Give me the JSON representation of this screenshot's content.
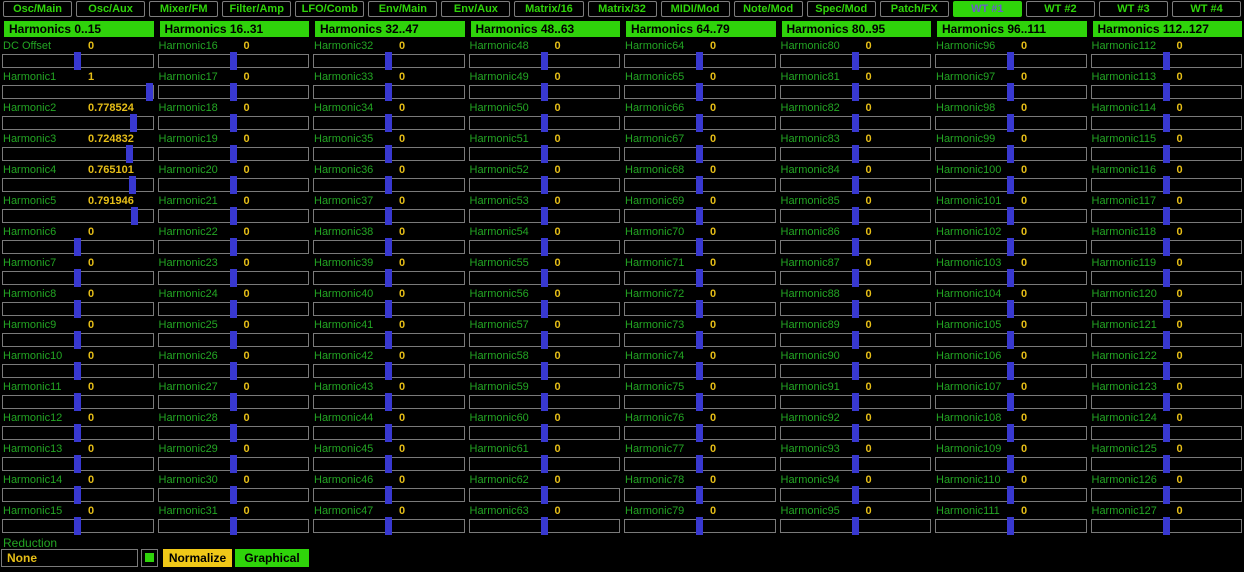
{
  "tabs": [
    {
      "label": "Osc/Main",
      "selected": false
    },
    {
      "label": "Osc/Aux",
      "selected": false
    },
    {
      "label": "Mixer/FM",
      "selected": false
    },
    {
      "label": "Filter/Amp",
      "selected": false
    },
    {
      "label": "LFO/Comb",
      "selected": false
    },
    {
      "label": "Env/Main",
      "selected": false
    },
    {
      "label": "Env/Aux",
      "selected": false
    },
    {
      "label": "Matrix/16",
      "selected": false
    },
    {
      "label": "Matrix/32",
      "selected": false
    },
    {
      "label": "MIDI/Mod",
      "selected": false
    },
    {
      "label": "Note/Mod",
      "selected": false
    },
    {
      "label": "Spec/Mod",
      "selected": false
    },
    {
      "label": "Patch/FX",
      "selected": false
    },
    {
      "label": "WT #1",
      "selected": true
    },
    {
      "label": "WT #2",
      "selected": false
    },
    {
      "label": "WT #3",
      "selected": false
    },
    {
      "label": "WT #4",
      "selected": false
    }
  ],
  "columns": [
    {
      "header": "Harmonics 0..15",
      "rows": [
        [
          "DC Offset",
          "0"
        ],
        [
          "Harmonic1",
          "1"
        ],
        [
          "Harmonic2",
          "0.778524"
        ],
        [
          "Harmonic3",
          "0.724832"
        ],
        [
          "Harmonic4",
          "0.765101"
        ],
        [
          "Harmonic5",
          "0.791946"
        ],
        [
          "Harmonic6",
          "0"
        ],
        [
          "Harmonic7",
          "0"
        ],
        [
          "Harmonic8",
          "0"
        ],
        [
          "Harmonic9",
          "0"
        ],
        [
          "Harmonic10",
          "0"
        ],
        [
          "Harmonic11",
          "0"
        ],
        [
          "Harmonic12",
          "0"
        ],
        [
          "Harmonic13",
          "0"
        ],
        [
          "Harmonic14",
          "0"
        ],
        [
          "Harmonic15",
          "0"
        ]
      ]
    },
    {
      "header": "Harmonics 16..31",
      "rows": [
        [
          "Harmonic16",
          "0"
        ],
        [
          "Harmonic17",
          "0"
        ],
        [
          "Harmonic18",
          "0"
        ],
        [
          "Harmonic19",
          "0"
        ],
        [
          "Harmonic20",
          "0"
        ],
        [
          "Harmonic21",
          "0"
        ],
        [
          "Harmonic22",
          "0"
        ],
        [
          "Harmonic23",
          "0"
        ],
        [
          "Harmonic24",
          "0"
        ],
        [
          "Harmonic25",
          "0"
        ],
        [
          "Harmonic26",
          "0"
        ],
        [
          "Harmonic27",
          "0"
        ],
        [
          "Harmonic28",
          "0"
        ],
        [
          "Harmonic29",
          "0"
        ],
        [
          "Harmonic30",
          "0"
        ],
        [
          "Harmonic31",
          "0"
        ]
      ]
    },
    {
      "header": "Harmonics 32..47",
      "rows": [
        [
          "Harmonic32",
          "0"
        ],
        [
          "Harmonic33",
          "0"
        ],
        [
          "Harmonic34",
          "0"
        ],
        [
          "Harmonic35",
          "0"
        ],
        [
          "Harmonic36",
          "0"
        ],
        [
          "Harmonic37",
          "0"
        ],
        [
          "Harmonic38",
          "0"
        ],
        [
          "Harmonic39",
          "0"
        ],
        [
          "Harmonic40",
          "0"
        ],
        [
          "Harmonic41",
          "0"
        ],
        [
          "Harmonic42",
          "0"
        ],
        [
          "Harmonic43",
          "0"
        ],
        [
          "Harmonic44",
          "0"
        ],
        [
          "Harmonic45",
          "0"
        ],
        [
          "Harmonic46",
          "0"
        ],
        [
          "Harmonic47",
          "0"
        ]
      ]
    },
    {
      "header": "Harmonics 48..63",
      "rows": [
        [
          "Harmonic48",
          "0"
        ],
        [
          "Harmonic49",
          "0"
        ],
        [
          "Harmonic50",
          "0"
        ],
        [
          "Harmonic51",
          "0"
        ],
        [
          "Harmonic52",
          "0"
        ],
        [
          "Harmonic53",
          "0"
        ],
        [
          "Harmonic54",
          "0"
        ],
        [
          "Harmonic55",
          "0"
        ],
        [
          "Harmonic56",
          "0"
        ],
        [
          "Harmonic57",
          "0"
        ],
        [
          "Harmonic58",
          "0"
        ],
        [
          "Harmonic59",
          "0"
        ],
        [
          "Harmonic60",
          "0"
        ],
        [
          "Harmonic61",
          "0"
        ],
        [
          "Harmonic62",
          "0"
        ],
        [
          "Harmonic63",
          "0"
        ]
      ]
    },
    {
      "header": "Harmonics 64..79",
      "rows": [
        [
          "Harmonic64",
          "0"
        ],
        [
          "Harmonic65",
          "0"
        ],
        [
          "Harmonic66",
          "0"
        ],
        [
          "Harmonic67",
          "0"
        ],
        [
          "Harmonic68",
          "0"
        ],
        [
          "Harmonic69",
          "0"
        ],
        [
          "Harmonic70",
          "0"
        ],
        [
          "Harmonic71",
          "0"
        ],
        [
          "Harmonic72",
          "0"
        ],
        [
          "Harmonic73",
          "0"
        ],
        [
          "Harmonic74",
          "0"
        ],
        [
          "Harmonic75",
          "0"
        ],
        [
          "Harmonic76",
          "0"
        ],
        [
          "Harmonic77",
          "0"
        ],
        [
          "Harmonic78",
          "0"
        ],
        [
          "Harmonic79",
          "0"
        ]
      ]
    },
    {
      "header": "Harmonics 80..95",
      "rows": [
        [
          "Harmonic80",
          "0"
        ],
        [
          "Harmonic81",
          "0"
        ],
        [
          "Harmonic82",
          "0"
        ],
        [
          "Harmonic83",
          "0"
        ],
        [
          "Harmonic84",
          "0"
        ],
        [
          "Harmonic85",
          "0"
        ],
        [
          "Harmonic86",
          "0"
        ],
        [
          "Harmonic87",
          "0"
        ],
        [
          "Harmonic88",
          "0"
        ],
        [
          "Harmonic89",
          "0"
        ],
        [
          "Harmonic90",
          "0"
        ],
        [
          "Harmonic91",
          "0"
        ],
        [
          "Harmonic92",
          "0"
        ],
        [
          "Harmonic93",
          "0"
        ],
        [
          "Harmonic94",
          "0"
        ],
        [
          "Harmonic95",
          "0"
        ]
      ]
    },
    {
      "header": "Harmonics 96..111",
      "rows": [
        [
          "Harmonic96",
          "0"
        ],
        [
          "Harmonic97",
          "0"
        ],
        [
          "Harmonic98",
          "0"
        ],
        [
          "Harmonic99",
          "0"
        ],
        [
          "Harmonic100",
          "0"
        ],
        [
          "Harmonic101",
          "0"
        ],
        [
          "Harmonic102",
          "0"
        ],
        [
          "Harmonic103",
          "0"
        ],
        [
          "Harmonic104",
          "0"
        ],
        [
          "Harmonic105",
          "0"
        ],
        [
          "Harmonic106",
          "0"
        ],
        [
          "Harmonic107",
          "0"
        ],
        [
          "Harmonic108",
          "0"
        ],
        [
          "Harmonic109",
          "0"
        ],
        [
          "Harmonic110",
          "0"
        ],
        [
          "Harmonic111",
          "0"
        ]
      ]
    },
    {
      "header": "Harmonics 112..127",
      "rows": [
        [
          "Harmonic112",
          "0"
        ],
        [
          "Harmonic113",
          "0"
        ],
        [
          "Harmonic114",
          "0"
        ],
        [
          "Harmonic115",
          "0"
        ],
        [
          "Harmonic116",
          "0"
        ],
        [
          "Harmonic117",
          "0"
        ],
        [
          "Harmonic118",
          "0"
        ],
        [
          "Harmonic119",
          "0"
        ],
        [
          "Harmonic120",
          "0"
        ],
        [
          "Harmonic121",
          "0"
        ],
        [
          "Harmonic122",
          "0"
        ],
        [
          "Harmonic123",
          "0"
        ],
        [
          "Harmonic124",
          "0"
        ],
        [
          "Harmonic125",
          "0"
        ],
        [
          "Harmonic126",
          "0"
        ],
        [
          "Harmonic127",
          "0"
        ]
      ]
    }
  ],
  "slider": {
    "range_min": -1,
    "range_max": 1
  },
  "footer": {
    "reduction_label": "Reduction",
    "mode_value": "None",
    "normalize_label": "Normalize",
    "graphical_label": "Graphical"
  },
  "colors": {
    "background": "#000000",
    "header_green": "#2fd30b",
    "tab_text_green": "#2fd40a",
    "selected_tab_text": "#6b5fc8",
    "label_green": "#23a523",
    "value_yellow": "#e6be17",
    "slider_handle_blue": "#3838d0",
    "slider_border_gray": "#7a7a7a",
    "normalize_button_bg": "#f0c818",
    "graphical_button_bg": "#2fd40a",
    "indicator_green": "#2fd40a"
  }
}
